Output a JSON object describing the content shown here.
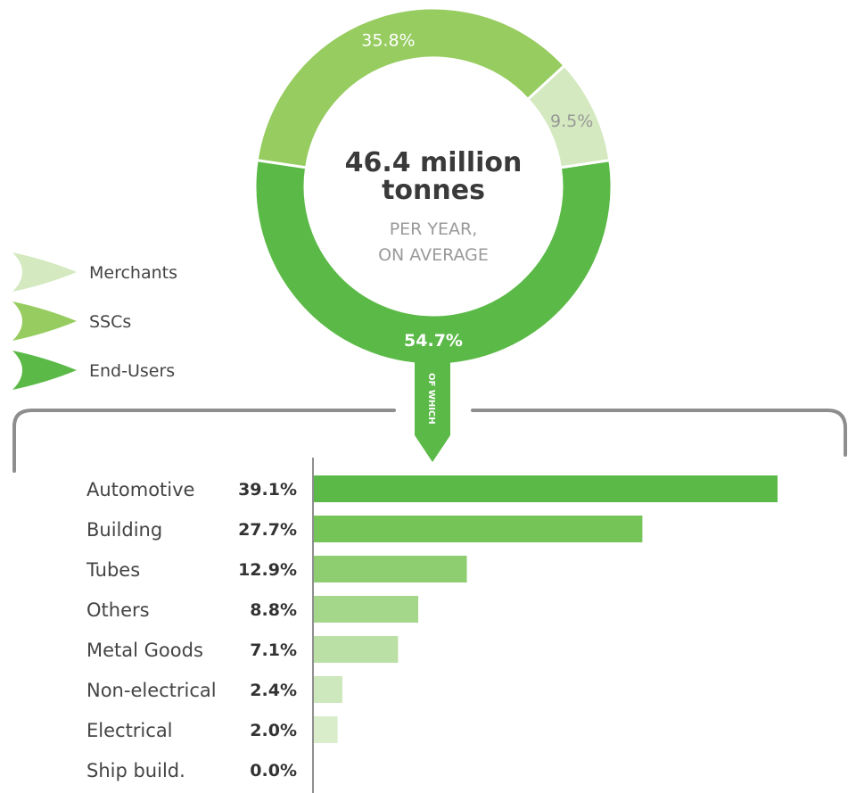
{
  "donut": {
    "total_value": "46.4 million",
    "total_unit": "tonnes",
    "subtitle_line1": "PER YEAR,",
    "subtitle_line2": "ON AVERAGE",
    "connector_label": "OF WHICH"
  },
  "legend": [
    {
      "label": "Merchants",
      "color": "#d4e9bf"
    },
    {
      "label": "SSCs",
      "color": "#97cc60"
    },
    {
      "label": "End-Users",
      "color": "#5bba47"
    }
  ],
  "colors": {
    "merchants": "#d4e9bf",
    "sscs": "#97cc60",
    "end_users": "#5bba47",
    "frame": "#8e8e8e",
    "axis": "#8e8e8e"
  },
  "chart_data": [
    {
      "type": "pie",
      "slices": [
        {
          "name": "Merchants",
          "value": 9.5,
          "label": "9.5%"
        },
        {
          "name": "SSCs",
          "value": 35.8,
          "label": "35.8%"
        },
        {
          "name": "End-Users",
          "value": 54.7,
          "label": "54.7%"
        }
      ]
    },
    {
      "type": "bar",
      "orientation": "horizontal",
      "categories": [
        "Automotive",
        "Building",
        "Tubes",
        "Others",
        "Metal Goods",
        "Non-electrical",
        "Electrical",
        "Ship build."
      ],
      "values": [
        39.1,
        27.7,
        12.9,
        8.8,
        7.1,
        2.4,
        2.0,
        0.0
      ],
      "labels": [
        "39.1%",
        "27.7%",
        "12.9%",
        "8.8%",
        "7.1%",
        "2.4%",
        "2.0%",
        "0.0%"
      ],
      "bar_colors": [
        "#5bba47",
        "#75c457",
        "#8ecd70",
        "#a5d78a",
        "#bbe0a5",
        "#cde8bc",
        "#d9edcb",
        "#e4f2da"
      ]
    }
  ]
}
